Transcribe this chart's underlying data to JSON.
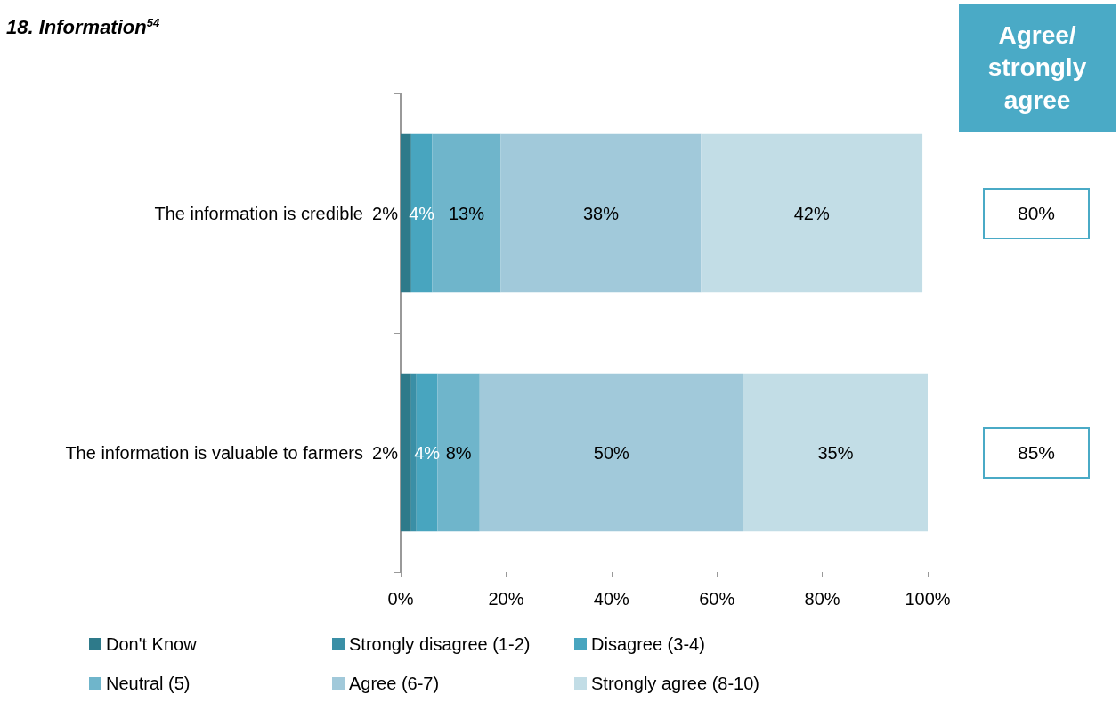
{
  "chart_data": {
    "type": "bar",
    "orientation": "horizontal",
    "stacked": true,
    "title": "18. Information$^{54}$",
    "categories": [
      "The information is credible",
      "The information is valuable to farmers"
    ],
    "series": [
      {
        "name": "Don't Know",
        "color": "#2e7a8a",
        "values": [
          2,
          2
        ],
        "value_labels": [
          "2%",
          "2%"
        ]
      },
      {
        "name": "Strongly disagree (1-2)",
        "color": "#3a8fa6",
        "values": [
          0,
          1
        ],
        "value_labels": [
          null,
          null
        ]
      },
      {
        "name": "Disagree (3-4)",
        "color": "#48a5bf",
        "values": [
          4,
          4
        ],
        "value_labels": [
          "4%",
          "4%"
        ]
      },
      {
        "name": "Neutral (5)",
        "color": "#6fb5cb",
        "values": [
          13,
          8
        ],
        "value_labels": [
          "13%",
          "8%"
        ]
      },
      {
        "name": "Agree (6-7)",
        "color": "#a1c9da",
        "values": [
          38,
          50
        ],
        "value_labels": [
          "38%",
          "50%"
        ]
      },
      {
        "name": "Strongly agree (8-10)",
        "color": "#c2dde6",
        "values": [
          42,
          35
        ],
        "value_labels": [
          "42%",
          "35%"
        ]
      }
    ],
    "xlim": [
      0,
      100
    ],
    "xticks": [
      {
        "value": 0,
        "label": "0%"
      },
      {
        "value": 20,
        "label": "20%"
      },
      {
        "value": 40,
        "label": "40%"
      },
      {
        "value": 60,
        "label": "60%"
      },
      {
        "value": 80,
        "label": "80%"
      },
      {
        "value": 100,
        "label": "100%"
      }
    ],
    "grid": false,
    "legend": "bottom left",
    "annotations": [
      "Agree/ strongly agree",
      "80%",
      "85%"
    ]
  }
}
